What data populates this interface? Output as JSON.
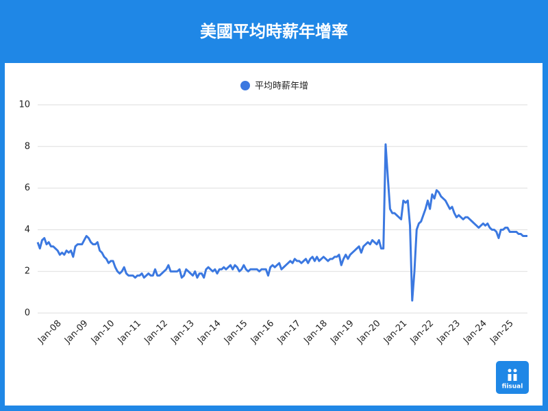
{
  "chart_data": {
    "type": "line",
    "title": "美國平均時薪年增率",
    "logo": "fiisual",
    "categories": [
      null,
      null,
      null,
      null,
      null,
      null,
      null,
      null,
      null,
      null,
      "Jan-08",
      null,
      null,
      null,
      null,
      null,
      null,
      null,
      null,
      null,
      null,
      null,
      "Jan-09",
      null,
      null,
      null,
      null,
      null,
      null,
      null,
      null,
      null,
      null,
      null,
      "Jan-10",
      null,
      null,
      null,
      null,
      null,
      null,
      null,
      null,
      null,
      null,
      null,
      "Jan-11",
      null,
      null,
      null,
      null,
      null,
      null,
      null,
      null,
      null,
      null,
      null,
      "Jan-12",
      null,
      null,
      null,
      null,
      null,
      null,
      null,
      null,
      null,
      null,
      null,
      "Jan-13",
      null,
      null,
      null,
      null,
      null,
      null,
      null,
      null,
      null,
      null,
      null,
      "Jan-14",
      null,
      null,
      null,
      null,
      null,
      null,
      null,
      null,
      null,
      null,
      null,
      "Jan-15",
      null,
      null,
      null,
      null,
      null,
      null,
      null,
      null,
      null,
      null,
      null,
      "Jan-16",
      null,
      null,
      null,
      null,
      null,
      null,
      null,
      null,
      null,
      null,
      null,
      "Jan-17",
      null,
      null,
      null,
      null,
      null,
      null,
      null,
      null,
      null,
      null,
      null,
      "Jan-18",
      null,
      null,
      null,
      null,
      null,
      null,
      null,
      null,
      null,
      null,
      null,
      "Jan-19",
      null,
      null,
      null,
      null,
      null,
      null,
      null,
      null,
      null,
      null,
      null,
      "Jan-20",
      null,
      null,
      null,
      null,
      null,
      null,
      null,
      null,
      null,
      null,
      null,
      "Jan-21",
      null,
      null,
      null,
      null,
      null,
      null,
      null,
      null,
      null,
      null,
      null,
      "Jan-22",
      null,
      null,
      null,
      null,
      null,
      null,
      null,
      null,
      null,
      null,
      null,
      "Jan-23",
      null,
      null,
      null,
      null,
      null,
      null,
      null,
      null,
      null,
      null,
      null,
      "Jan-24",
      null,
      null,
      null,
      null,
      null,
      null,
      null,
      null,
      null,
      null,
      null,
      "Jan-25",
      null,
      null,
      null,
      null,
      null,
      null,
      null
    ],
    "series": [
      {
        "name": "平均時薪年增",
        "color": "#3b78e0",
        "values": [
          3.4,
          3.1,
          3.5,
          3.6,
          3.3,
          3.4,
          3.2,
          3.2,
          3.1,
          3.0,
          2.8,
          2.9,
          2.8,
          3.0,
          2.9,
          3.0,
          2.7,
          3.2,
          3.3,
          3.3,
          3.3,
          3.5,
          3.7,
          3.6,
          3.4,
          3.3,
          3.3,
          3.4,
          3.0,
          2.9,
          2.7,
          2.6,
          2.4,
          2.5,
          2.5,
          2.2,
          2.0,
          1.9,
          2.0,
          2.2,
          1.9,
          1.8,
          1.8,
          1.8,
          1.7,
          1.8,
          1.8,
          1.9,
          1.7,
          1.8,
          1.9,
          1.8,
          1.8,
          2.1,
          1.8,
          1.8,
          1.9,
          2.0,
          2.1,
          2.3,
          2.0,
          2.0,
          2.0,
          2.0,
          2.1,
          1.7,
          1.8,
          2.1,
          2.0,
          1.9,
          1.8,
          2.0,
          1.7,
          1.9,
          1.9,
          1.7,
          2.1,
          2.2,
          2.1,
          2.0,
          2.1,
          1.9,
          2.1,
          2.1,
          2.2,
          2.1,
          2.2,
          2.3,
          2.1,
          2.3,
          2.2,
          2.0,
          2.1,
          2.3,
          2.1,
          2.0,
          2.1,
          2.1,
          2.1,
          2.1,
          2.0,
          2.1,
          2.1,
          2.1,
          1.8,
          2.2,
          2.3,
          2.2,
          2.3,
          2.4,
          2.1,
          2.2,
          2.3,
          2.4,
          2.5,
          2.4,
          2.6,
          2.5,
          2.5,
          2.4,
          2.5,
          2.6,
          2.4,
          2.6,
          2.7,
          2.5,
          2.7,
          2.5,
          2.6,
          2.7,
          2.6,
          2.5,
          2.6,
          2.6,
          2.7,
          2.7,
          2.8,
          2.3,
          2.6,
          2.8,
          2.6,
          2.8,
          2.9,
          3.0,
          3.1,
          3.2,
          2.9,
          3.2,
          3.3,
          3.4,
          3.3,
          3.5,
          3.4,
          3.3,
          3.5,
          3.1,
          3.1,
          8.1,
          6.5,
          5.0,
          4.8,
          4.8,
          4.7,
          4.6,
          4.5,
          5.4,
          5.3,
          5.4,
          4.2,
          0.6,
          2.0,
          4.0,
          4.3,
          4.4,
          4.7,
          5.0,
          5.4,
          5.0,
          5.7,
          5.5,
          5.9,
          5.8,
          5.6,
          5.5,
          5.4,
          5.2,
          5.0,
          5.1,
          4.8,
          4.6,
          4.7,
          4.6,
          4.5,
          4.6,
          4.6,
          4.5,
          4.4,
          4.3,
          4.2,
          4.1,
          4.2,
          4.3,
          4.2,
          4.3,
          4.1,
          4.0,
          4.0,
          3.9,
          3.6,
          4.0,
          4.0,
          4.1,
          4.1,
          3.9,
          3.9,
          3.9,
          3.9,
          3.8,
          3.8,
          3.7,
          3.7,
          3.7
        ]
      }
    ],
    "ylim": [
      0,
      10
    ],
    "yticks": [
      0,
      2,
      4,
      6,
      8,
      10
    ],
    "grid": true,
    "legend": "top"
  }
}
